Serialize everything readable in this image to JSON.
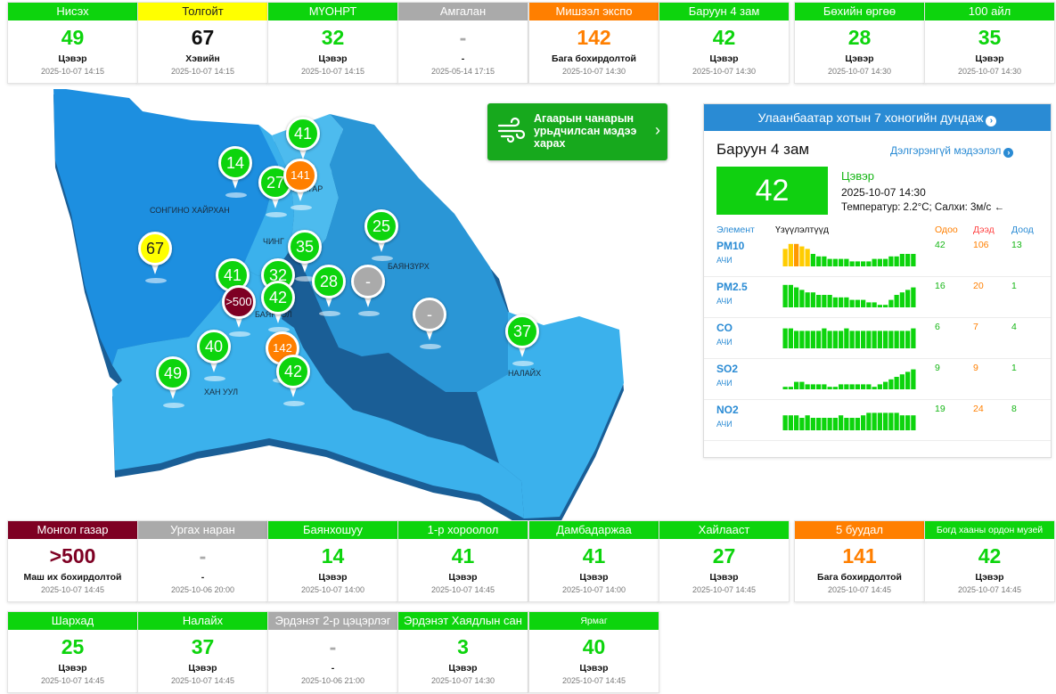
{
  "top_cards": [
    {
      "name": "Нисэх",
      "value": "49",
      "status": "Цэвэр",
      "time": "2025-10-07 14:15",
      "color": "#0dd40d",
      "head_text": "#ffffff",
      "val_color": "#0dd40d"
    },
    {
      "name": "Толгойт",
      "value": "67",
      "status": "Хэвийн",
      "time": "2025-10-07 14:15",
      "color": "#ffff00",
      "head_text": "#222222",
      "val_color": "#111111"
    },
    {
      "name": "МҮОНРТ",
      "value": "32",
      "status": "Цэвэр",
      "time": "2025-10-07 14:15",
      "color": "#0dd40d",
      "head_text": "#ffffff",
      "val_color": "#0dd40d"
    },
    {
      "name": "Амгалан",
      "value": "-",
      "status": "-",
      "time": "2025-05-14 17:15",
      "color": "#aaaaaa",
      "head_text": "#ffffff",
      "val_color": "#aaaaaa"
    },
    {
      "name": "Мишээл экспо",
      "value": "142",
      "status": "Бага бохирдолтой",
      "time": "2025-10-07 14:30",
      "color": "#ff7f00",
      "head_text": "#ffffff",
      "val_color": "#ff7f00"
    },
    {
      "name": "Баруун 4 зам",
      "value": "42",
      "status": "Цэвэр",
      "time": "2025-10-07 14:30",
      "color": "#0dd40d",
      "head_text": "#ffffff",
      "val_color": "#0dd40d"
    },
    {
      "name": "Бөхийн өргөө",
      "value": "28",
      "status": "Цэвэр",
      "time": "2025-10-07 14:30",
      "color": "#0dd40d",
      "head_text": "#ffffff",
      "val_color": "#0dd40d"
    },
    {
      "name": "100 айл",
      "value": "35",
      "status": "Цэвэр",
      "time": "2025-10-07 14:30",
      "color": "#0dd40d",
      "head_text": "#ffffff",
      "val_color": "#0dd40d"
    }
  ],
  "bottom_cards": [
    {
      "name": "Монгол газар",
      "value": ">500",
      "status": "Маш их бохирдолтой",
      "time": "2025-10-07 14:45",
      "color": "#7e0023",
      "head_text": "#ffffff",
      "val_color": "#7e0023"
    },
    {
      "name": "Ургах наран",
      "value": "-",
      "status": "-",
      "time": "2025-10-06 20:00",
      "color": "#aaaaaa",
      "head_text": "#ffffff",
      "val_color": "#aaaaaa"
    },
    {
      "name": "Баянхошуу",
      "value": "14",
      "status": "Цэвэр",
      "time": "2025-10-07 14:00",
      "color": "#0dd40d",
      "head_text": "#ffffff",
      "val_color": "#0dd40d"
    },
    {
      "name": "1-р хороолол",
      "value": "41",
      "status": "Цэвэр",
      "time": "2025-10-07 14:45",
      "color": "#0dd40d",
      "head_text": "#ffffff",
      "val_color": "#0dd40d"
    },
    {
      "name": "Дамбадаржаа",
      "value": "41",
      "status": "Цэвэр",
      "time": "2025-10-07 14:00",
      "color": "#0dd40d",
      "head_text": "#ffffff",
      "val_color": "#0dd40d"
    },
    {
      "name": "Хайлааст",
      "value": "27",
      "status": "Цэвэр",
      "time": "2025-10-07 14:45",
      "color": "#0dd40d",
      "head_text": "#ffffff",
      "val_color": "#0dd40d"
    },
    {
      "name": "5 буудал",
      "value": "141",
      "status": "Бага бохирдолтой",
      "time": "2025-10-07 14:45",
      "color": "#ff7f00",
      "head_text": "#ffffff",
      "val_color": "#ff7f00"
    },
    {
      "name": "Богд хааны ордон музей",
      "value": "42",
      "status": "Цэвэр",
      "time": "2025-10-07 14:45",
      "color": "#0dd40d",
      "head_text": "#ffffff",
      "val_color": "#0dd40d",
      "small": true
    },
    {
      "name": "Шархад",
      "value": "25",
      "status": "Цэвэр",
      "time": "2025-10-07 14:45",
      "color": "#0dd40d",
      "head_text": "#ffffff",
      "val_color": "#0dd40d"
    },
    {
      "name": "Налайх",
      "value": "37",
      "status": "Цэвэр",
      "time": "2025-10-07 14:45",
      "color": "#0dd40d",
      "head_text": "#ffffff",
      "val_color": "#0dd40d"
    },
    {
      "name": "Эрдэнэт 2-р цэцэрлэг",
      "value": "-",
      "status": "-",
      "time": "2025-10-06 21:00",
      "color": "#aaaaaa",
      "head_text": "#ffffff",
      "val_color": "#aaaaaa"
    },
    {
      "name": "Эрдэнэт Хаядлын сан",
      "value": "3",
      "status": "Цэвэр",
      "time": "2025-10-07 14:30",
      "color": "#0dd40d",
      "head_text": "#ffffff",
      "val_color": "#0dd40d"
    },
    {
      "name": "Ярмаг",
      "value": "40",
      "status": "Цэвэр",
      "time": "2025-10-07 14:45",
      "color": "#0dd40d",
      "head_text": "#ffffff",
      "val_color": "#0dd40d",
      "small": true
    }
  ],
  "map": {
    "district_labels": [
      "СОНГИНО ХАЙРХАН",
      "ЧИНГ",
      "БААТАР",
      "БАЯНЗҮРХ",
      "БАЯН",
      "ОЛ",
      "ХАН УУЛ",
      "НАЛАЙХ"
    ],
    "pins": [
      {
        "value": "41",
        "color": "#0dd40d"
      },
      {
        "value": "14",
        "color": "#0dd40d"
      },
      {
        "value": "27",
        "color": "#0dd40d"
      },
      {
        "value": "141",
        "color": "#ff7f00",
        "small": true
      },
      {
        "value": "25",
        "color": "#0dd40d"
      },
      {
        "value": "67",
        "color": "#ffff00",
        "dark": true
      },
      {
        "value": "35",
        "color": "#0dd40d"
      },
      {
        "value": "41",
        "color": "#0dd40d"
      },
      {
        "value": "32",
        "color": "#0dd40d"
      },
      {
        "value": "42",
        "color": "#0dd40d"
      },
      {
        "value": ">500",
        "color": "#7e0023",
        "small": true
      },
      {
        "value": "28",
        "color": "#0dd40d"
      },
      {
        "value": "-",
        "color": "#aaaaaa"
      },
      {
        "value": "-",
        "color": "#aaaaaa"
      },
      {
        "value": "37",
        "color": "#0dd40d"
      },
      {
        "value": "40",
        "color": "#0dd40d"
      },
      {
        "value": "142",
        "color": "#ff7f00",
        "small": true
      },
      {
        "value": "49",
        "color": "#0dd40d"
      },
      {
        "value": "42",
        "color": "#0dd40d"
      }
    ]
  },
  "forecast_button": {
    "label": "Агаарын чанарын урьдчилсан мэдээ харах",
    "icon": "wind-icon"
  },
  "panel": {
    "title": "Улаанбаатар хотын 7 хоногийн дундаж",
    "station": "Баруун 4 зам",
    "details_link": "Дэлгэрэнгүй мэдээлэл",
    "aqi": "42",
    "status": "Цэвэр",
    "time": "2025-10-07 14:30",
    "weather": "Температур: 2.2°C; Салхи: 3м/с",
    "wind_arrow": "←",
    "headers": {
      "element": "Элемент",
      "indicators": "Үзүүлэлтүүд",
      "current": "Одоо",
      "high": "Дээд",
      "low": "Доод"
    },
    "pollutants": [
      {
        "name": "PM10",
        "unit": "АЧИ",
        "current": "42",
        "high": "106",
        "low": "13",
        "bars": [
          7,
          9,
          9,
          8,
          7,
          5,
          4,
          4,
          3,
          3,
          3,
          3,
          2,
          2,
          2,
          2,
          3,
          3,
          3,
          4,
          4,
          5,
          5,
          5
        ],
        "bar_colors": [
          "#ffcc00",
          "#ffcc00",
          "#ff9900",
          "#ffcc00",
          "#ffcc00",
          "#0dd40d",
          "#0dd40d",
          "#0dd40d",
          "#0dd40d",
          "#0dd40d",
          "#0dd40d",
          "#0dd40d",
          "#0dd40d",
          "#0dd40d",
          "#0dd40d",
          "#0dd40d",
          "#0dd40d",
          "#0dd40d",
          "#0dd40d",
          "#0dd40d",
          "#0dd40d",
          "#0dd40d",
          "#0dd40d",
          "#0dd40d"
        ]
      },
      {
        "name": "PM2.5",
        "unit": "АЧИ",
        "current": "16",
        "high": "20",
        "low": "1",
        "bars": [
          9,
          9,
          8,
          7,
          6,
          6,
          5,
          5,
          5,
          4,
          4,
          4,
          3,
          3,
          3,
          2,
          2,
          1,
          1,
          3,
          5,
          6,
          7,
          8
        ]
      },
      {
        "name": "CO",
        "unit": "АЧИ",
        "current": "6",
        "high": "7",
        "low": "4",
        "bars": [
          8,
          8,
          7,
          7,
          7,
          7,
          7,
          8,
          7,
          7,
          7,
          8,
          7,
          7,
          7,
          7,
          7,
          7,
          7,
          7,
          7,
          7,
          7,
          8
        ]
      },
      {
        "name": "SO2",
        "unit": "АЧИ",
        "current": "9",
        "high": "9",
        "low": "1",
        "bars": [
          1,
          1,
          3,
          3,
          2,
          2,
          2,
          2,
          1,
          1,
          2,
          2,
          2,
          2,
          2,
          2,
          1,
          2,
          3,
          4,
          5,
          6,
          7,
          8
        ]
      },
      {
        "name": "NO2",
        "unit": "АЧИ",
        "current": "19",
        "high": "24",
        "low": "8",
        "bars": [
          6,
          6,
          6,
          5,
          6,
          5,
          5,
          5,
          5,
          5,
          6,
          5,
          5,
          5,
          6,
          7,
          7,
          7,
          7,
          7,
          7,
          6,
          6,
          6
        ]
      }
    ]
  },
  "colors": {
    "current": "#16b616",
    "high": "#ff7f00",
    "low": "#16b616",
    "header": "#2a8bd4",
    "bar": "#0dd40d"
  }
}
